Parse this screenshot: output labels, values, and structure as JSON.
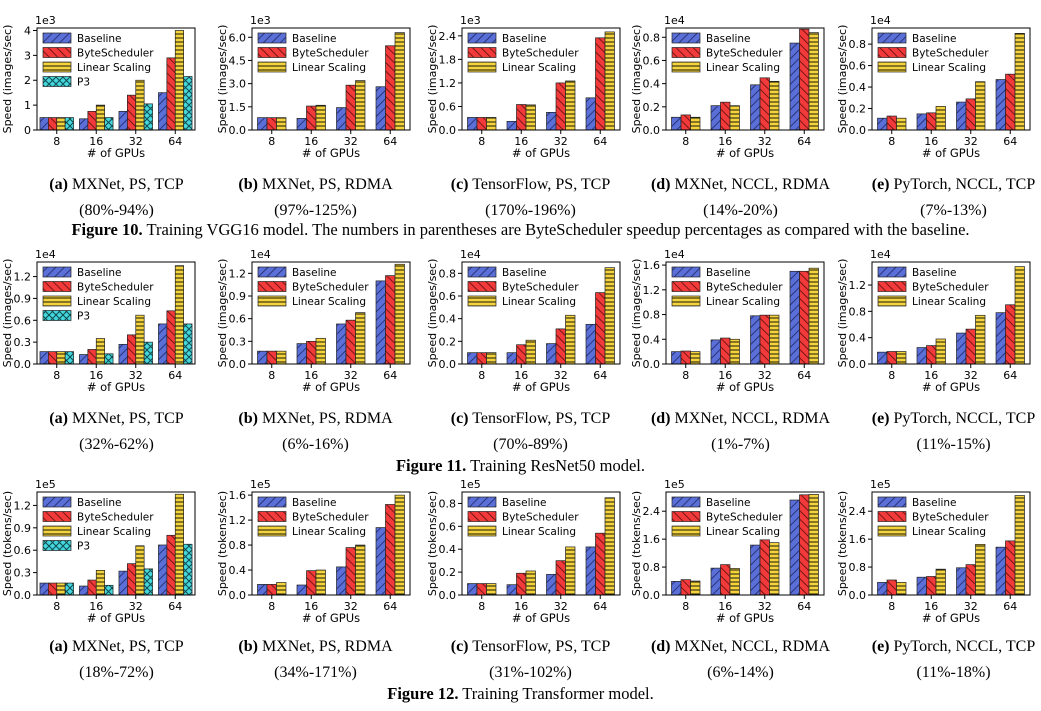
{
  "colors": {
    "baseline": "#5B6FD8",
    "bytescheduler": "#F23A3A",
    "linear": "#F5D33C",
    "p3": "#44D6DD",
    "edge": "#222222"
  },
  "legend_labels": {
    "baseline": "Baseline",
    "bytescheduler": "ByteScheduler",
    "linear": "Linear Scaling",
    "p3": "P3"
  },
  "figures": [
    {
      "caption_number": "Figure 10.",
      "caption_text": " Training VGG16 model. The numbers in parentheses are ByteScheduler speedup percentages as compared with the baseline.",
      "ylabel": "Speed (images/sec)",
      "subplots": [
        {
          "label": "(a)",
          "title": "MXNet, PS, TCP",
          "speedup": "(80%-94%)"
        },
        {
          "label": "(b)",
          "title": "MXNet, PS, RDMA",
          "speedup": "(97%-125%)"
        },
        {
          "label": "(c)",
          "title": "TensorFlow, PS, TCP",
          "speedup": "(170%-196%)"
        },
        {
          "label": "(d)",
          "title": "MXNet, NCCL, RDMA",
          "speedup": "(14%-20%)"
        },
        {
          "label": "(e)",
          "title": "PyTorch, NCCL, TCP",
          "speedup": "(7%-13%)"
        }
      ]
    },
    {
      "caption_number": "Figure 11.",
      "caption_text": " Training ResNet50 model.",
      "ylabel": "Speed (images/sec)",
      "subplots": [
        {
          "label": "(a)",
          "title": "MXNet, PS, TCP",
          "speedup": "(32%-62%)"
        },
        {
          "label": "(b)",
          "title": "MXNet, PS, RDMA",
          "speedup": "(6%-16%)"
        },
        {
          "label": "(c)",
          "title": "TensorFlow, PS, TCP",
          "speedup": "(70%-89%)"
        },
        {
          "label": "(d)",
          "title": "MXNet, NCCL, RDMA",
          "speedup": "(1%-7%)"
        },
        {
          "label": "(e)",
          "title": "PyTorch, NCCL, TCP",
          "speedup": "(11%-15%)"
        }
      ]
    },
    {
      "caption_number": "Figure 12.",
      "caption_text": " Training Transformer model.",
      "ylabel": "Speed (tokens/sec)",
      "subplots": [
        {
          "label": "(a)",
          "title": "MXNet, PS, TCP",
          "speedup": "(18%-72%)"
        },
        {
          "label": "(b)",
          "title": "MXNet, PS, RDMA",
          "speedup": "(34%-171%)"
        },
        {
          "label": "(c)",
          "title": "TensorFlow, PS, TCP",
          "speedup": "(31%-102%)"
        },
        {
          "label": "(d)",
          "title": "MXNet, NCCL, RDMA",
          "speedup": "(6%-14%)"
        },
        {
          "label": "(e)",
          "title": "PyTorch, NCCL, TCP",
          "speedup": "(11%-18%)"
        }
      ]
    }
  ],
  "chart_data": [
    {
      "type": "bar",
      "categories": [
        "8",
        "16",
        "32",
        "64"
      ],
      "xlabel": "# of GPUs",
      "ylabel": "Speed (images/sec)",
      "exponent": "1e3",
      "ylim": [
        0,
        4.1
      ],
      "yticks": [
        0,
        1,
        2,
        3,
        4
      ],
      "series": [
        {
          "name": "Baseline",
          "values": [
            0.5,
            0.45,
            0.75,
            1.5
          ]
        },
        {
          "name": "ByteScheduler",
          "values": [
            0.5,
            0.75,
            1.4,
            2.9
          ]
        },
        {
          "name": "Linear Scaling",
          "values": [
            0.5,
            1.0,
            2.0,
            4.0
          ]
        },
        {
          "name": "P3",
          "values": [
            0.5,
            0.5,
            1.05,
            2.15
          ]
        }
      ]
    },
    {
      "type": "bar",
      "categories": [
        "8",
        "16",
        "32",
        "64"
      ],
      "xlabel": "# of GPUs",
      "ylabel": "Speed (images/sec)",
      "exponent": "1e3",
      "ylim": [
        0,
        6.6
      ],
      "yticks": [
        0,
        1.5,
        3.0,
        4.5,
        6.0
      ],
      "series": [
        {
          "name": "Baseline",
          "values": [
            0.8,
            0.75,
            1.45,
            2.8
          ]
        },
        {
          "name": "ByteScheduler",
          "values": [
            0.8,
            1.55,
            2.9,
            5.45
          ]
        },
        {
          "name": "Linear Scaling",
          "values": [
            0.8,
            1.6,
            3.2,
            6.3
          ]
        }
      ]
    },
    {
      "type": "bar",
      "categories": [
        "8",
        "16",
        "32",
        "64"
      ],
      "xlabel": "# of GPUs",
      "ylabel": "Speed (images/sec)",
      "exponent": "1e3",
      "ylim": [
        0,
        2.6
      ],
      "yticks": [
        0,
        0.6,
        1.2,
        1.8,
        2.4
      ],
      "series": [
        {
          "name": "Baseline",
          "values": [
            0.32,
            0.22,
            0.45,
            0.82
          ]
        },
        {
          "name": "ByteScheduler",
          "values": [
            0.32,
            0.65,
            1.2,
            2.35
          ]
        },
        {
          "name": "Linear Scaling",
          "values": [
            0.32,
            0.64,
            1.25,
            2.5
          ]
        }
      ]
    },
    {
      "type": "bar",
      "categories": [
        "8",
        "16",
        "32",
        "64"
      ],
      "xlabel": "# of GPUs",
      "ylabel": "Speed (images/sec)",
      "exponent": "1e4",
      "ylim": [
        0,
        0.88
      ],
      "yticks": [
        0,
        0.2,
        0.4,
        0.6,
        0.8
      ],
      "series": [
        {
          "name": "Baseline",
          "values": [
            0.11,
            0.21,
            0.39,
            0.75
          ]
        },
        {
          "name": "ByteScheduler",
          "values": [
            0.13,
            0.24,
            0.45,
            0.87
          ]
        },
        {
          "name": "Linear Scaling",
          "values": [
            0.11,
            0.21,
            0.42,
            0.84
          ]
        }
      ]
    },
    {
      "type": "bar",
      "categories": [
        "8",
        "16",
        "32",
        "64"
      ],
      "xlabel": "# of GPUs",
      "ylabel": "Speed (images/sec)",
      "exponent": "1e4",
      "ylim": [
        0,
        0.95
      ],
      "yticks": [
        0,
        0.2,
        0.4,
        0.6,
        0.8
      ],
      "series": [
        {
          "name": "Baseline",
          "values": [
            0.11,
            0.15,
            0.26,
            0.47
          ]
        },
        {
          "name": "ByteScheduler",
          "values": [
            0.13,
            0.16,
            0.29,
            0.52
          ]
        },
        {
          "name": "Linear Scaling",
          "values": [
            0.11,
            0.22,
            0.45,
            0.9
          ]
        }
      ]
    },
    {
      "type": "bar",
      "categories": [
        "8",
        "16",
        "32",
        "64"
      ],
      "xlabel": "# of GPUs",
      "ylabel": "Speed (images/sec)",
      "exponent": "1e4",
      "ylim": [
        0,
        1.4
      ],
      "yticks": [
        0,
        0.3,
        0.6,
        0.9,
        1.2
      ],
      "series": [
        {
          "name": "Baseline",
          "values": [
            0.17,
            0.13,
            0.27,
            0.55
          ]
        },
        {
          "name": "ByteScheduler",
          "values": [
            0.17,
            0.2,
            0.4,
            0.73
          ]
        },
        {
          "name": "Linear Scaling",
          "values": [
            0.17,
            0.35,
            0.67,
            1.35
          ]
        },
        {
          "name": "P3",
          "values": [
            0.17,
            0.14,
            0.3,
            0.55
          ]
        }
      ]
    },
    {
      "type": "bar",
      "categories": [
        "8",
        "16",
        "32",
        "64"
      ],
      "xlabel": "# of GPUs",
      "ylabel": "Speed (images/sec)",
      "exponent": "1e4",
      "ylim": [
        0,
        1.35
      ],
      "yticks": [
        0,
        0.3,
        0.6,
        0.9,
        1.2
      ],
      "series": [
        {
          "name": "Baseline",
          "values": [
            0.17,
            0.27,
            0.53,
            1.1
          ]
        },
        {
          "name": "ByteScheduler",
          "values": [
            0.17,
            0.3,
            0.58,
            1.17
          ]
        },
        {
          "name": "Linear Scaling",
          "values": [
            0.17,
            0.34,
            0.68,
            1.32
          ]
        }
      ]
    },
    {
      "type": "bar",
      "categories": [
        "8",
        "16",
        "32",
        "64"
      ],
      "xlabel": "# of GPUs",
      "ylabel": "Speed (images/sec)",
      "exponent": "1e4",
      "ylim": [
        0,
        0.9
      ],
      "yticks": [
        0,
        0.2,
        0.4,
        0.6,
        0.8
      ],
      "series": [
        {
          "name": "Baseline",
          "values": [
            0.1,
            0.1,
            0.18,
            0.35
          ]
        },
        {
          "name": "ByteScheduler",
          "values": [
            0.1,
            0.17,
            0.31,
            0.63
          ]
        },
        {
          "name": "Linear Scaling",
          "values": [
            0.1,
            0.21,
            0.43,
            0.85
          ]
        }
      ]
    },
    {
      "type": "bar",
      "categories": [
        "8",
        "16",
        "32",
        "64"
      ],
      "xlabel": "# of GPUs",
      "ylabel": "Speed (images/sec)",
      "exponent": "1e4",
      "ylim": [
        0,
        1.65
      ],
      "yticks": [
        0,
        0.4,
        0.8,
        1.2,
        1.6
      ],
      "series": [
        {
          "name": "Baseline",
          "values": [
            0.2,
            0.39,
            0.78,
            1.5
          ]
        },
        {
          "name": "ByteScheduler",
          "values": [
            0.21,
            0.42,
            0.79,
            1.5
          ]
        },
        {
          "name": "Linear Scaling",
          "values": [
            0.2,
            0.4,
            0.79,
            1.55
          ]
        }
      ]
    },
    {
      "type": "bar",
      "categories": [
        "8",
        "16",
        "32",
        "64"
      ],
      "xlabel": "# of GPUs",
      "ylabel": "Speed (images/sec)",
      "exponent": "1e4",
      "ylim": [
        0,
        1.55
      ],
      "yticks": [
        0,
        0.4,
        0.8,
        1.2
      ],
      "series": [
        {
          "name": "Baseline",
          "values": [
            0.18,
            0.25,
            0.47,
            0.78
          ]
        },
        {
          "name": "ByteScheduler",
          "values": [
            0.19,
            0.28,
            0.53,
            0.9
          ]
        },
        {
          "name": "Linear Scaling",
          "values": [
            0.19,
            0.38,
            0.74,
            1.48
          ]
        }
      ]
    },
    {
      "type": "bar",
      "categories": [
        "8",
        "16",
        "32",
        "64"
      ],
      "xlabel": "# of GPUs",
      "ylabel": "Speed (tokens/sec)",
      "exponent": "1e5",
      "ylim": [
        0,
        1.38
      ],
      "yticks": [
        0,
        0.3,
        0.6,
        0.9,
        1.2
      ],
      "series": [
        {
          "name": "Baseline",
          "values": [
            0.16,
            0.12,
            0.32,
            0.67
          ]
        },
        {
          "name": "ByteScheduler",
          "values": [
            0.16,
            0.2,
            0.42,
            0.8
          ]
        },
        {
          "name": "Linear Scaling",
          "values": [
            0.16,
            0.33,
            0.66,
            1.35
          ]
        },
        {
          "name": "P3",
          "values": [
            0.16,
            0.13,
            0.35,
            0.68
          ]
        }
      ]
    },
    {
      "type": "bar",
      "categories": [
        "8",
        "16",
        "32",
        "64"
      ],
      "xlabel": "# of GPUs",
      "ylabel": "Speed (tokens/sec)",
      "exponent": "1e5",
      "ylim": [
        0,
        1.65
      ],
      "yticks": [
        0,
        0.4,
        0.8,
        1.2,
        1.6
      ],
      "series": [
        {
          "name": "Baseline",
          "values": [
            0.17,
            0.16,
            0.45,
            1.08
          ]
        },
        {
          "name": "ByteScheduler",
          "values": [
            0.17,
            0.39,
            0.76,
            1.45
          ]
        },
        {
          "name": "Linear Scaling",
          "values": [
            0.2,
            0.4,
            0.8,
            1.6
          ]
        }
      ]
    },
    {
      "type": "bar",
      "categories": [
        "8",
        "16",
        "32",
        "64"
      ],
      "xlabel": "# of GPUs",
      "ylabel": "Speed (tokens/sec)",
      "exponent": "1e5",
      "ylim": [
        0,
        0.9
      ],
      "yticks": [
        0,
        0.2,
        0.4,
        0.6,
        0.8
      ],
      "series": [
        {
          "name": "Baseline",
          "values": [
            0.1,
            0.09,
            0.18,
            0.42
          ]
        },
        {
          "name": "ByteScheduler",
          "values": [
            0.1,
            0.19,
            0.3,
            0.54
          ]
        },
        {
          "name": "Linear Scaling",
          "values": [
            0.1,
            0.21,
            0.42,
            0.85
          ]
        }
      ]
    },
    {
      "type": "bar",
      "categories": [
        "8",
        "16",
        "32",
        "64"
      ],
      "xlabel": "# of GPUs",
      "ylabel": "Speed (tokens/sec)",
      "exponent": "1e5",
      "ylim": [
        0,
        2.95
      ],
      "yticks": [
        0,
        0.8,
        1.6,
        2.4
      ],
      "series": [
        {
          "name": "Baseline",
          "values": [
            0.39,
            0.77,
            1.43,
            2.72
          ]
        },
        {
          "name": "ByteScheduler",
          "values": [
            0.44,
            0.87,
            1.58,
            2.87
          ]
        },
        {
          "name": "Linear Scaling",
          "values": [
            0.4,
            0.76,
            1.5,
            2.88
          ]
        }
      ]
    },
    {
      "type": "bar",
      "categories": [
        "8",
        "16",
        "32",
        "64"
      ],
      "xlabel": "# of GPUs",
      "ylabel": "Speed (tokens/sec)",
      "exponent": "1e5",
      "ylim": [
        0,
        2.95
      ],
      "yticks": [
        0,
        0.8,
        1.6,
        2.4
      ],
      "series": [
        {
          "name": "Baseline",
          "values": [
            0.36,
            0.51,
            0.78,
            1.37
          ]
        },
        {
          "name": "ByteScheduler",
          "values": [
            0.43,
            0.53,
            0.87,
            1.55
          ]
        },
        {
          "name": "Linear Scaling",
          "values": [
            0.36,
            0.74,
            1.45,
            2.85
          ]
        }
      ]
    }
  ]
}
